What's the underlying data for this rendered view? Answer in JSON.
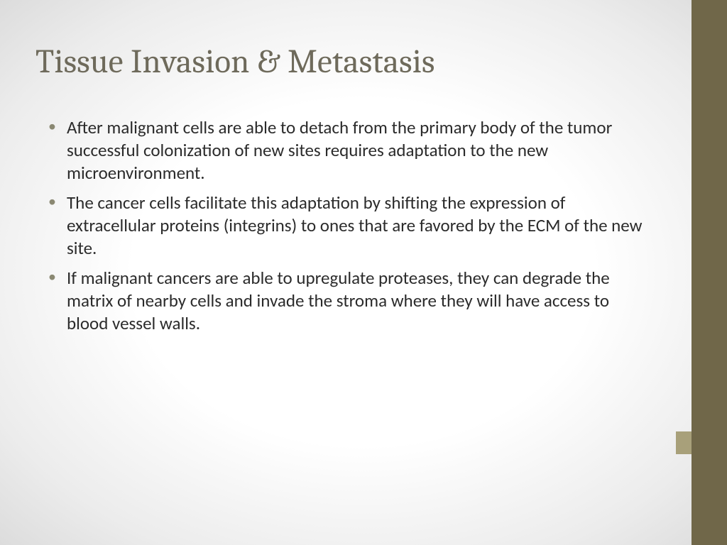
{
  "slide": {
    "title": "Tissue Invasion & Metastasis",
    "title_color": "#6e6a5b",
    "body_text_color": "#2b2b2b",
    "bullet_color": "#8a8872",
    "background_gradient_inner": "#ffffff",
    "background_gradient_outer": "#dcdcdc",
    "sidebar_main_color": "#706749",
    "sidebar_accent_color": "#a8a07a",
    "bullets": [
      "After malignant cells are able to detach from the primary body of the tumor successful colonization of new sites requires adaptation to the new microenvironment.",
      "The cancer cells facilitate this adaptation by shifting the expression of extracellular proteins (integrins) to ones that are favored by the ECM of the new site.",
      "If malignant cancers are able to upregulate proteases, they can degrade the matrix of nearby cells and invade the stroma where they will have access to blood vessel walls."
    ],
    "title_fontsize": 47,
    "body_fontsize": 25
  }
}
